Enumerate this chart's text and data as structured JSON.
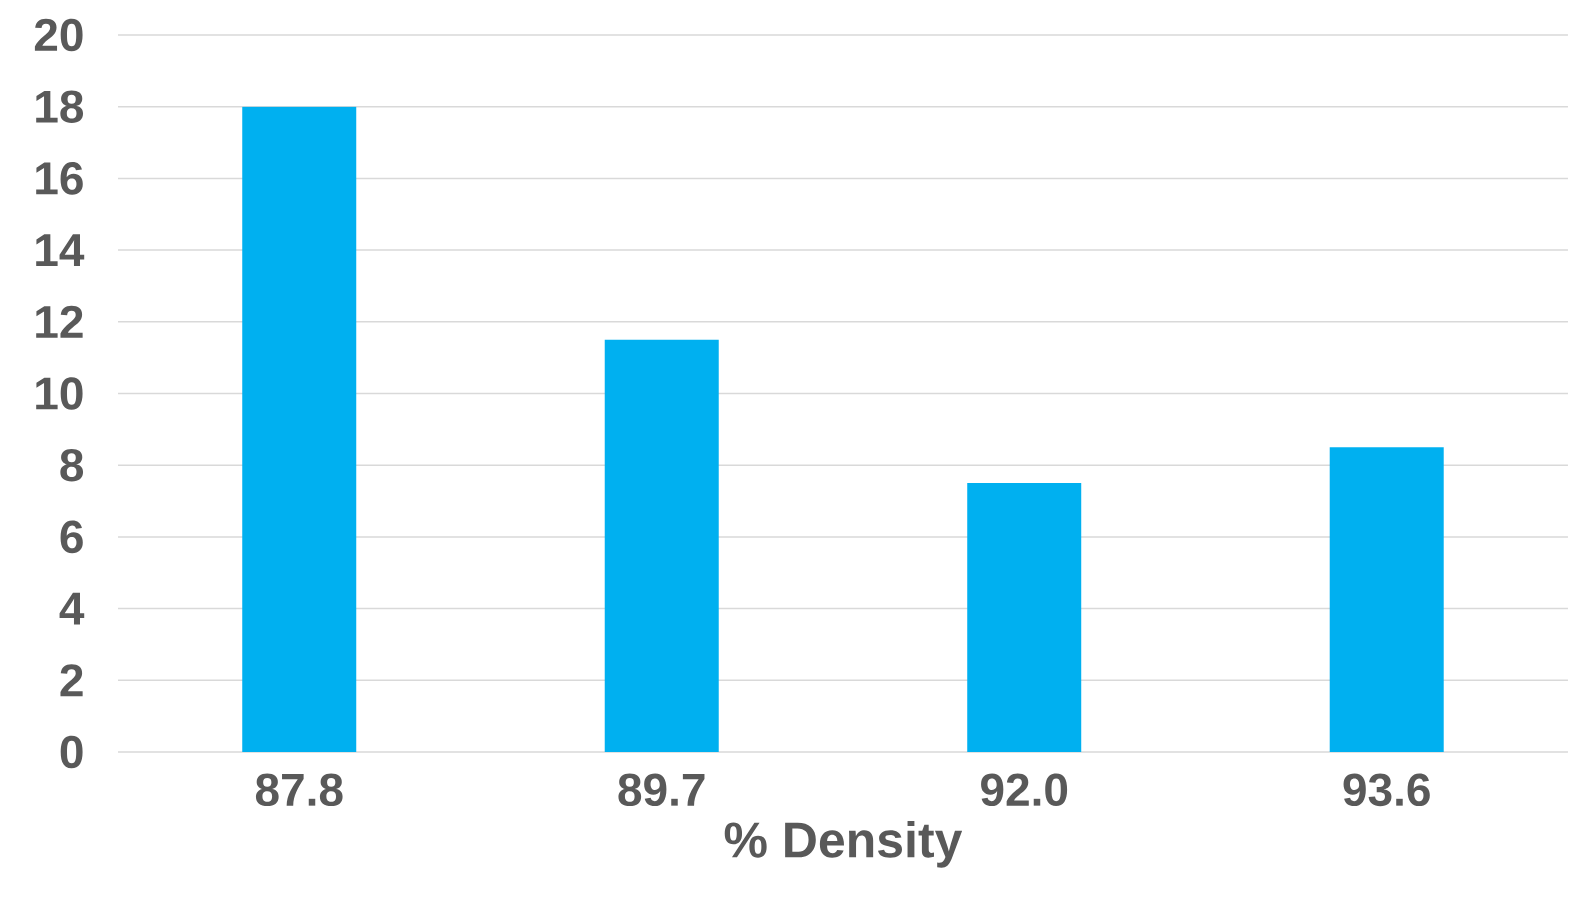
{
  "chart_data": {
    "type": "bar",
    "xlabel": "% Density",
    "categories": [
      "87.8",
      "89.7",
      "92.0",
      "93.6"
    ],
    "values": [
      18,
      11.5,
      7.5,
      8.5
    ],
    "color": "#00b0f0",
    "ylim": [
      0,
      20
    ],
    "yticks": [
      0,
      2,
      4,
      6,
      8,
      10,
      12,
      14,
      16,
      18,
      20
    ],
    "grid": "y"
  }
}
